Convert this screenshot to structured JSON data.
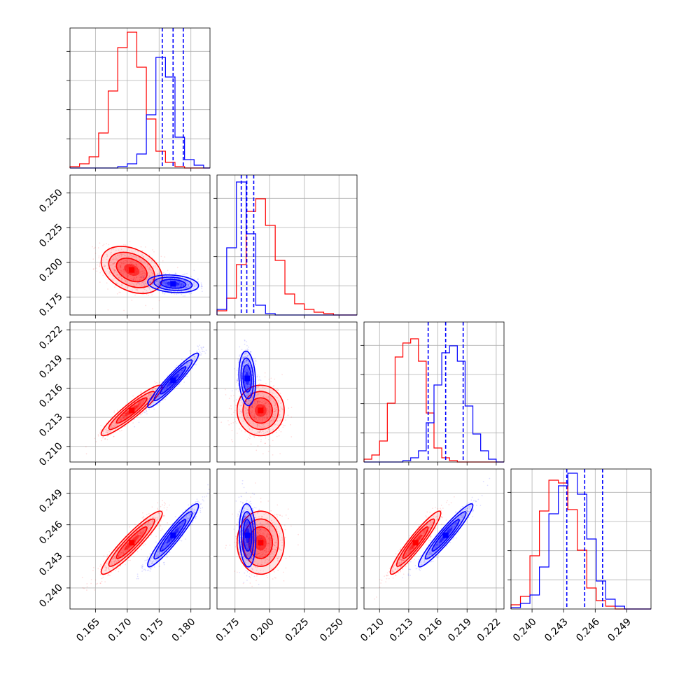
{
  "chart_data": {
    "type": "corner",
    "series": [
      {
        "color": "#ff0000"
      },
      {
        "color": "#0000ff"
      }
    ],
    "grid": true,
    "params": [
      {
        "range": [
          0.161,
          0.183
        ],
        "ticks": [
          "0.165",
          "0.170",
          "0.175",
          "0.180"
        ]
      },
      {
        "range": [
          0.162,
          0.263
        ],
        "ticks": [
          "0.175",
          "0.200",
          "0.225",
          "0.250"
        ]
      },
      {
        "range": [
          0.2084,
          0.2228
        ],
        "ticks": [
          "0.210",
          "0.213",
          "0.216",
          "0.219",
          "0.222"
        ]
      },
      {
        "range": [
          0.238,
          0.2513
        ],
        "ticks": [
          "0.240",
          "0.243",
          "0.246",
          "0.249"
        ]
      }
    ],
    "histograms": [
      {
        "param": 0,
        "edges": [
          0.161,
          0.1625,
          0.164,
          0.1655,
          0.167,
          0.1685,
          0.17,
          0.1715,
          0.173,
          0.1745,
          0.176,
          0.1775,
          0.179,
          0.1805,
          0.182,
          0.183
        ],
        "red": [
          0.01,
          0.03,
          0.08,
          0.25,
          0.55,
          0.86,
          0.97,
          0.72,
          0.35,
          0.12,
          0.04,
          0.01,
          0.0,
          0.0,
          0.0
        ],
        "blue": [
          0.0,
          0.0,
          0.0,
          0.0,
          0.0,
          0.01,
          0.03,
          0.1,
          0.38,
          0.79,
          0.65,
          0.22,
          0.06,
          0.02,
          0.0
        ],
        "blue_quantiles": [
          0.1755,
          0.1772,
          0.1788
        ]
      },
      {
        "param": 1,
        "edges": [
          0.162,
          0.169,
          0.176,
          0.183,
          0.19,
          0.197,
          0.204,
          0.211,
          0.218,
          0.225,
          0.232,
          0.239,
          0.246,
          0.253,
          0.263
        ],
        "red": [
          0.03,
          0.12,
          0.36,
          0.74,
          0.83,
          0.64,
          0.39,
          0.15,
          0.08,
          0.04,
          0.02,
          0.01,
          0.0,
          0.0
        ],
        "blue": [
          0.04,
          0.48,
          0.95,
          0.58,
          0.07,
          0.01,
          0.0,
          0.0,
          0.0,
          0.0,
          0.0,
          0.0,
          0.0,
          0.0
        ],
        "blue_quantiles": [
          0.1795,
          0.1835,
          0.1885
        ]
      },
      {
        "param": 2,
        "edges": [
          0.2084,
          0.2092,
          0.21,
          0.2108,
          0.2116,
          0.2124,
          0.2132,
          0.214,
          0.2148,
          0.2156,
          0.2164,
          0.2172,
          0.218,
          0.2188,
          0.2196,
          0.2204,
          0.2212,
          0.222,
          0.2228
        ],
        "red": [
          0.02,
          0.05,
          0.15,
          0.42,
          0.75,
          0.85,
          0.88,
          0.72,
          0.35,
          0.1,
          0.03,
          0.01,
          0.0,
          0.0,
          0.0,
          0.0,
          0.0,
          0.0
        ],
        "blue": [
          0.0,
          0.0,
          0.0,
          0.0,
          0.0,
          0.01,
          0.03,
          0.08,
          0.28,
          0.55,
          0.78,
          0.83,
          0.72,
          0.4,
          0.2,
          0.08,
          0.02,
          0.0
        ],
        "blue_quantiles": [
          0.215,
          0.2168,
          0.2186
        ]
      },
      {
        "param": 3,
        "edges": [
          0.238,
          0.2389,
          0.2398,
          0.2407,
          0.2416,
          0.2425,
          0.2434,
          0.2443,
          0.2452,
          0.2461,
          0.247,
          0.2479,
          0.2488,
          0.2497,
          0.2506,
          0.2513
        ],
        "red": [
          0.03,
          0.09,
          0.38,
          0.7,
          0.92,
          0.9,
          0.71,
          0.42,
          0.15,
          0.06,
          0.02,
          0.0,
          0.0,
          0.0,
          0.0
        ],
        "blue": [
          0.01,
          0.04,
          0.1,
          0.3,
          0.68,
          0.88,
          0.97,
          0.82,
          0.5,
          0.2,
          0.07,
          0.02,
          0.0,
          0.0,
          0.0
        ],
        "blue_quantiles": [
          0.2433,
          0.245,
          0.2467
        ]
      }
    ],
    "joint": [
      {
        "row": 1,
        "col": 0,
        "red": {
          "mean": [
            0.1707,
            0.1945
          ],
          "sd": [
            0.0024,
            0.0085
          ],
          "corr": -0.35
        },
        "blue": {
          "mean": [
            0.1772,
            0.1845
          ],
          "sd": [
            0.002,
            0.0032
          ],
          "corr": -0.2
        }
      },
      {
        "row": 2,
        "col": 0,
        "red": {
          "mean": [
            0.1707,
            0.2137
          ],
          "sd": [
            0.0024,
            0.0013
          ],
          "corr": 0.93
        },
        "blue": {
          "mean": [
            0.1772,
            0.2168
          ],
          "sd": [
            0.002,
            0.0014
          ],
          "corr": 0.95
        }
      },
      {
        "row": 2,
        "col": 1,
        "red": {
          "mean": [
            0.1935,
            0.2137
          ],
          "sd": [
            0.0085,
            0.0013
          ],
          "corr": 0.0
        },
        "blue": {
          "mean": [
            0.1838,
            0.217
          ],
          "sd": [
            0.003,
            0.0014
          ],
          "corr": -0.15
        }
      },
      {
        "row": 3,
        "col": 0,
        "red": {
          "mean": [
            0.1707,
            0.2443
          ],
          "sd": [
            0.0024,
            0.0015
          ],
          "corr": 0.93
        },
        "blue": {
          "mean": [
            0.1772,
            0.245
          ],
          "sd": [
            0.002,
            0.0015
          ],
          "corr": 0.94
        }
      },
      {
        "row": 3,
        "col": 1,
        "red": {
          "mean": [
            0.1935,
            0.2443
          ],
          "sd": [
            0.0085,
            0.0015
          ],
          "corr": 0.0
        },
        "blue": {
          "mean": [
            0.184,
            0.245
          ],
          "sd": [
            0.003,
            0.0015
          ],
          "corr": -0.1
        }
      },
      {
        "row": 3,
        "col": 2,
        "red": {
          "mean": [
            0.2137,
            0.2443
          ],
          "sd": [
            0.0013,
            0.0015
          ],
          "corr": 0.94
        },
        "blue": {
          "mean": [
            0.2168,
            0.245
          ],
          "sd": [
            0.0014,
            0.0015
          ],
          "corr": 0.95
        }
      }
    ]
  }
}
